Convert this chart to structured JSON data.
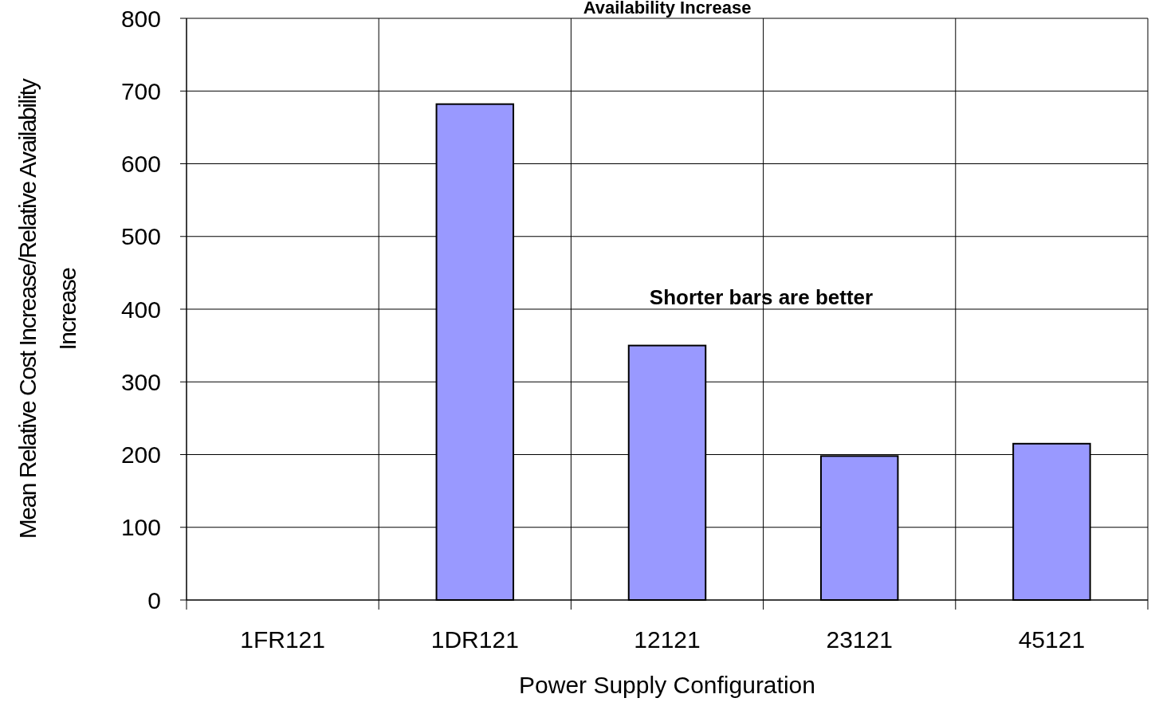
{
  "chart_data": {
    "type": "bar",
    "title": "Availability Increase",
    "xlabel": "Power Supply Configuration",
    "ylabel": "Mean Relative Cost Increase/Relative Availability Increase",
    "categories": [
      "1FR121",
      "1DR121",
      "12121",
      "23121",
      "45121"
    ],
    "values": [
      null,
      682,
      350,
      198,
      215
    ],
    "color": "#9999ff",
    "ylim": [
      0,
      800
    ],
    "yticks": [
      0,
      100,
      200,
      300,
      400,
      500,
      600,
      700,
      800
    ],
    "grid": true,
    "annotations": [
      "Shorter bars are better"
    ]
  }
}
